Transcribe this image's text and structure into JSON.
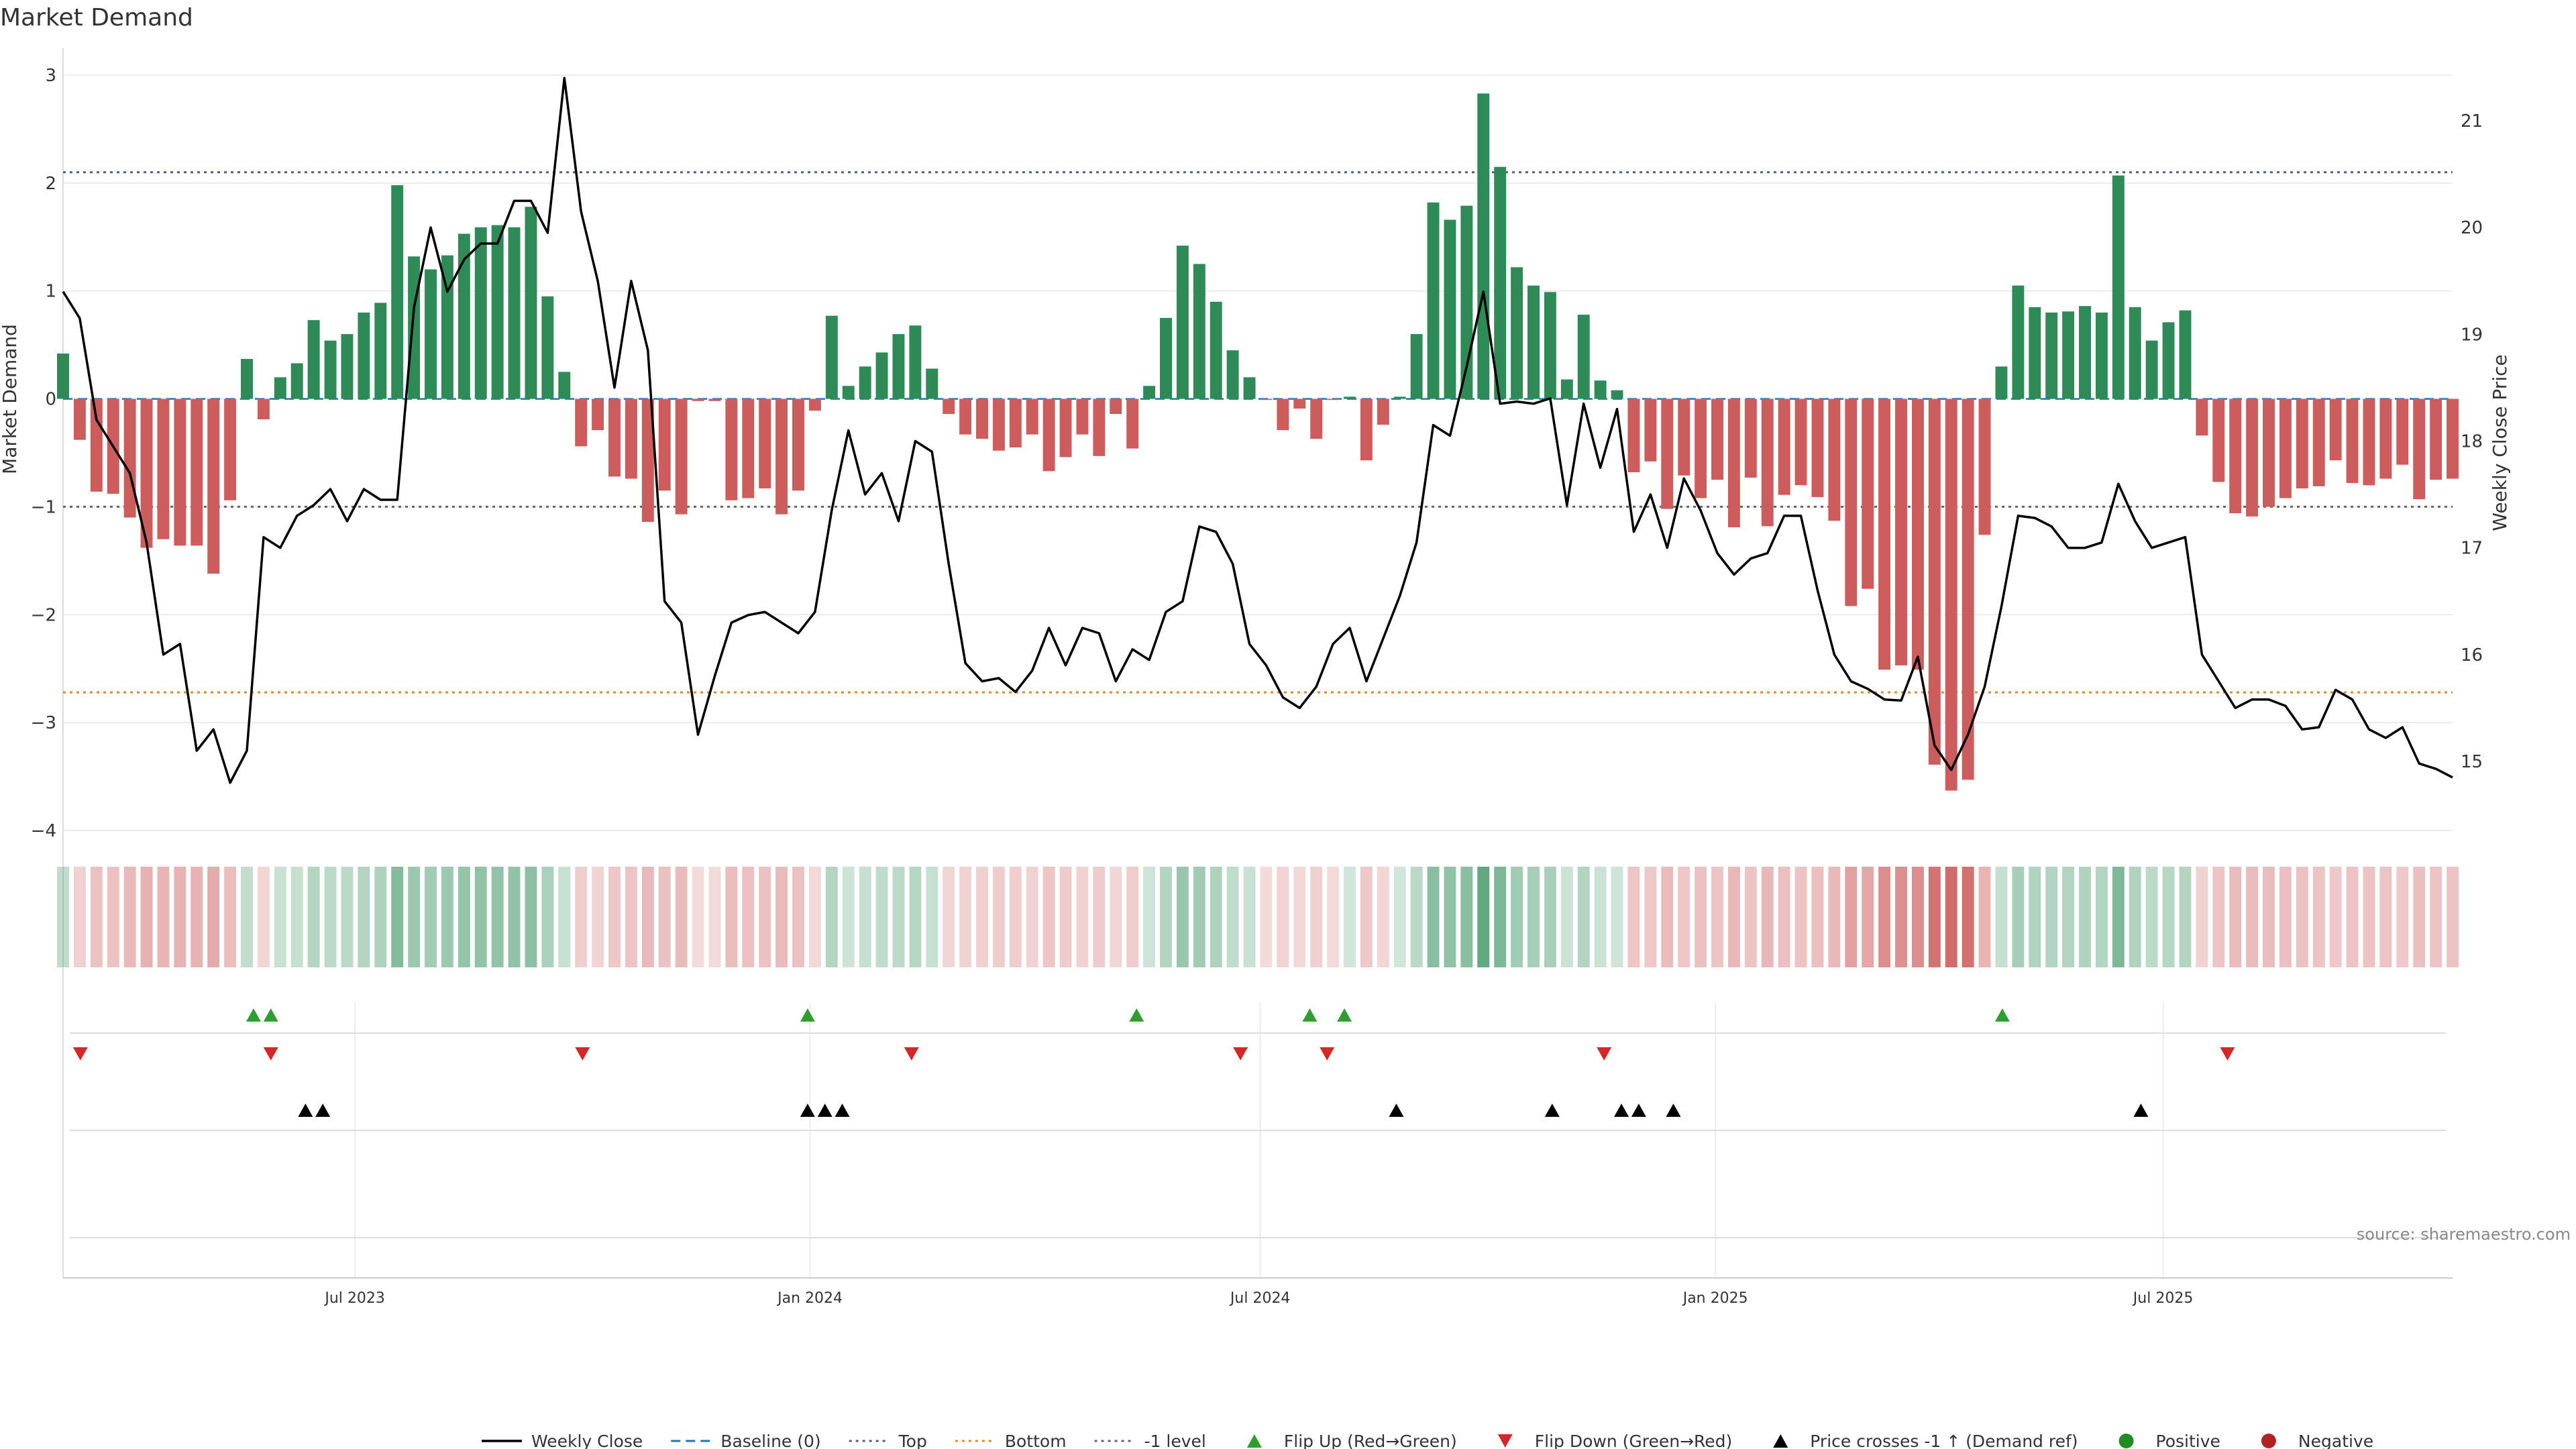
{
  "chart_data": {
    "type": "bar",
    "title": "Market Demand",
    "ylabel": "Market Demand",
    "y2label": "Weekly Close Price",
    "source": "source: sharemaestro.com",
    "ylim": [
      -4.0,
      3.0
    ],
    "y2lim": [
      14.5,
      21.5
    ],
    "yticks": [
      "3",
      "2",
      "1",
      "0",
      "−1",
      "−2",
      "−3",
      "−4"
    ],
    "y2ticks": [
      "21",
      "20",
      "19",
      "18",
      "17",
      "16",
      "15"
    ],
    "x_start": "2023-03-05",
    "x_end": "2025-10-26",
    "xticks": [
      {
        "date": "2023-07-01",
        "label": "Jul 2023"
      },
      {
        "date": "2024-01-01",
        "label": "Jan 2024"
      },
      {
        "date": "2024-07-01",
        "label": "Jul 2024"
      },
      {
        "date": "2025-01-01",
        "label": "Jan 2025"
      },
      {
        "date": "2025-07-01",
        "label": "Jul 2025"
      }
    ],
    "reference_lines": {
      "baseline": 0,
      "top": 2.1,
      "bottom": -2.72,
      "minus_one": -1.0
    },
    "demand_values": [
      0.42,
      -0.38,
      -0.86,
      -0.88,
      -1.1,
      -1.38,
      -1.3,
      -1.36,
      -1.36,
      -1.62,
      -0.94,
      0.37,
      -0.19,
      0.2,
      0.33,
      0.73,
      0.54,
      0.6,
      0.8,
      0.89,
      1.98,
      1.32,
      1.2,
      1.33,
      1.53,
      1.59,
      1.61,
      1.59,
      1.78,
      0.95,
      0.25,
      -0.44,
      -0.29,
      -0.72,
      -0.74,
      -1.14,
      -0.85,
      -1.07,
      -0.02,
      -0.02,
      -0.94,
      -0.92,
      -0.83,
      -1.07,
      -0.85,
      -0.11,
      0.77,
      0.12,
      0.3,
      0.43,
      0.6,
      0.68,
      0.28,
      -0.14,
      -0.33,
      -0.37,
      -0.48,
      -0.45,
      -0.33,
      -0.67,
      -0.54,
      -0.33,
      -0.53,
      -0.14,
      -0.46,
      0.12,
      0.75,
      1.42,
      1.25,
      0.9,
      0.45,
      0.2,
      -0.01,
      -0.29,
      -0.09,
      -0.37,
      -0.01,
      0.02,
      -0.57,
      -0.24,
      0.02,
      0.6,
      1.82,
      1.66,
      1.79,
      2.83,
      2.15,
      1.22,
      1.05,
      0.99,
      0.18,
      0.78,
      0.17,
      0.08,
      -0.68,
      -0.58,
      -1.02,
      -0.71,
      -0.92,
      -0.75,
      -1.19,
      -0.73,
      -1.18,
      -0.89,
      -0.8,
      -0.91,
      -1.13,
      -1.92,
      -1.76,
      -2.51,
      -2.47,
      -2.51,
      -3.39,
      -3.63,
      -3.53,
      -1.26,
      0.3,
      1.05,
      0.85,
      0.8,
      0.81,
      0.86,
      0.8,
      2.07,
      0.85,
      0.54,
      0.71,
      0.82,
      -0.34,
      -0.77,
      -1.06,
      -1.09,
      -1.0,
      -0.92,
      -0.83,
      -0.81,
      -0.57,
      -0.78,
      -0.8,
      -0.74,
      -0.61,
      -0.93,
      -0.75,
      -0.74
    ],
    "weekly_close": [
      19.4,
      19.15,
      18.2,
      17.95,
      17.7,
      17.05,
      16,
      16.1,
      15.1,
      15.3,
      14.8,
      15.1,
      17.1,
      17.0,
      17.3,
      17.4,
      17.55,
      17.25,
      17.55,
      17.45,
      17.45,
      19.25,
      20.0,
      19.4,
      19.7,
      19.85,
      19.85,
      20.25,
      20.25,
      19.95,
      21.4,
      20.15,
      19.5,
      18.5,
      19.5,
      18.85,
      16.5,
      16.3,
      15.25,
      15.8,
      16.3,
      16.37,
      16.4,
      16.3,
      16.2,
      16.4,
      17.35,
      18.1,
      17.5,
      17.7,
      17.25,
      18.0,
      17.9,
      16.85,
      15.92,
      15.75,
      15.78,
      15.65,
      15.85,
      16.25,
      15.9,
      16.25,
      16.2,
      15.75,
      16.05,
      15.95,
      16.4,
      16.5,
      17.2,
      17.15,
      16.85,
      16.1,
      15.9,
      15.6,
      15.5,
      15.7,
      16.1,
      16.25,
      15.75,
      16.15,
      16.55,
      17.05,
      18.15,
      18.05,
      18.7,
      19.4,
      18.35,
      18.37,
      18.35,
      18.4,
      17.4,
      18.35,
      17.75,
      18.3,
      17.15,
      17.5,
      17.0,
      17.65,
      17.35,
      16.95,
      16.75,
      16.9,
      16.95,
      17.3,
      17.3,
      16.6,
      16.0,
      15.75,
      15.68,
      15.58,
      15.57,
      15.98,
      15.15,
      14.92,
      15.25,
      15.7,
      16.45,
      17.3,
      17.28,
      17.2,
      17.0,
      17.0,
      17.05,
      17.6,
      17.25,
      17.0,
      17.05,
      17.1,
      16.0,
      15.75,
      15.5,
      15.58,
      15.58,
      15.52,
      15.3,
      15.32,
      15.67,
      15.58,
      15.3,
      15.22,
      15.32,
      14.98,
      14.93,
      14.85
    ],
    "flip_up": [
      "2023-05-21",
      "2023-05-28",
      "2023-12-31",
      "2024-05-12",
      "2024-07-21",
      "2024-08-04",
      "2025-04-27"
    ],
    "flip_down": [
      "2023-03-12",
      "2023-05-28",
      "2023-10-01",
      "2024-02-11",
      "2024-06-23",
      "2024-07-28",
      "2024-11-17",
      "2025-07-27"
    ],
    "price_cross": [
      "2023-06-11",
      "2023-06-18",
      "2023-12-31",
      "2024-01-07",
      "2024-01-14",
      "2024-08-25",
      "2024-10-27",
      "2024-11-24",
      "2024-12-01",
      "2024-12-15",
      "2025-06-22"
    ],
    "legend": [
      {
        "label": "Weekly Close",
        "kind": "line",
        "color": "#000000"
      },
      {
        "label": "Baseline (0)",
        "kind": "dash",
        "color": "#1f77b4"
      },
      {
        "label": "Top",
        "kind": "dot",
        "color": "#5a5a8c"
      },
      {
        "label": "Bottom",
        "kind": "dot",
        "color": "#e08a2c"
      },
      {
        "label": "-1 level",
        "kind": "dot",
        "color": "#666666"
      },
      {
        "label": "Flip Up (Red→Green)",
        "kind": "tri-up",
        "color": "#2ca02c"
      },
      {
        "label": "Flip Down (Green→Red)",
        "kind": "tri-down",
        "color": "#d62728"
      },
      {
        "label": "Price crosses -1 ↑ (Demand ref)",
        "kind": "tri-up",
        "color": "#000000"
      },
      {
        "label": "Positive",
        "kind": "circle",
        "color": "#228b22"
      },
      {
        "label": "Negative",
        "kind": "circle",
        "color": "#b22222"
      }
    ],
    "colors": {
      "positive": "#2e8b57",
      "negative": "#cd5c5c",
      "top": "#5a5a8c",
      "bottom": "#e08a2c",
      "minus_one": "#666666",
      "baseline": "#1f77b4",
      "flip_up": "#2ca02c",
      "flip_down": "#d62728",
      "cross": "#000000",
      "grid": "#ececec"
    }
  }
}
